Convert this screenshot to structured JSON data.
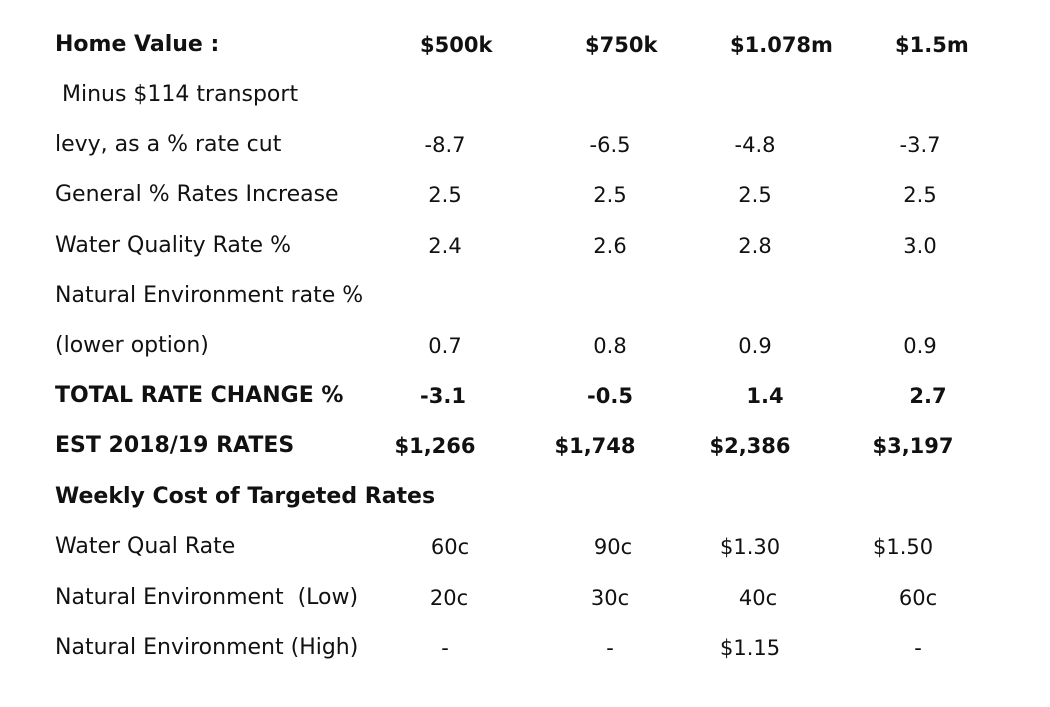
{
  "header": {
    "label": "Home Value :",
    "values": [
      "$500k",
      "$750k",
      "$1.078m",
      "$1.5m"
    ]
  },
  "rows": [
    {
      "label": " Minus $114 transport",
      "values": [
        "",
        "",
        "",
        ""
      ]
    },
    {
      "label": "levy, as a % rate cut",
      "values": [
        "-8.7",
        "-6.5",
        "-4.8",
        "-3.7"
      ]
    },
    {
      "label": "General % Rates Increase",
      "values": [
        "2.5",
        "2.5",
        "2.5",
        "2.5"
      ]
    },
    {
      "label": "Water Quality Rate %",
      "values": [
        "2.4",
        "2.6",
        "2.8",
        "3.0"
      ]
    },
    {
      "label": "Natural Environment rate %",
      "values": [
        "",
        "",
        "",
        ""
      ]
    },
    {
      "label": "(lower option)",
      "values": [
        "0.7",
        "0.8",
        "0.9",
        "0.9"
      ]
    },
    {
      "label": "TOTAL RATE CHANGE %",
      "values": [
        "-3.1",
        "-0.5",
        "1.4",
        "2.7"
      ]
    },
    {
      "label": "EST 2018/19 RATES",
      "values": [
        "$1,266",
        "$1,748",
        "$2,386",
        "$3,197"
      ]
    },
    {
      "label": "Weekly Cost of Targeted Rates",
      "values": [
        "",
        "",
        "",
        ""
      ]
    },
    {
      "label": "Water Qual Rate",
      "values": [
        "60c",
        "90c",
        "$1.30",
        "$1.50"
      ]
    },
    {
      "label": "Natural Environment  (Low)",
      "values": [
        "20c",
        "30c",
        "40c",
        "60c"
      ]
    },
    {
      "label": "Natural Environment (High)",
      "values": [
        "-",
        "-",
        "$1.15",
        "-"
      ]
    }
  ]
}
